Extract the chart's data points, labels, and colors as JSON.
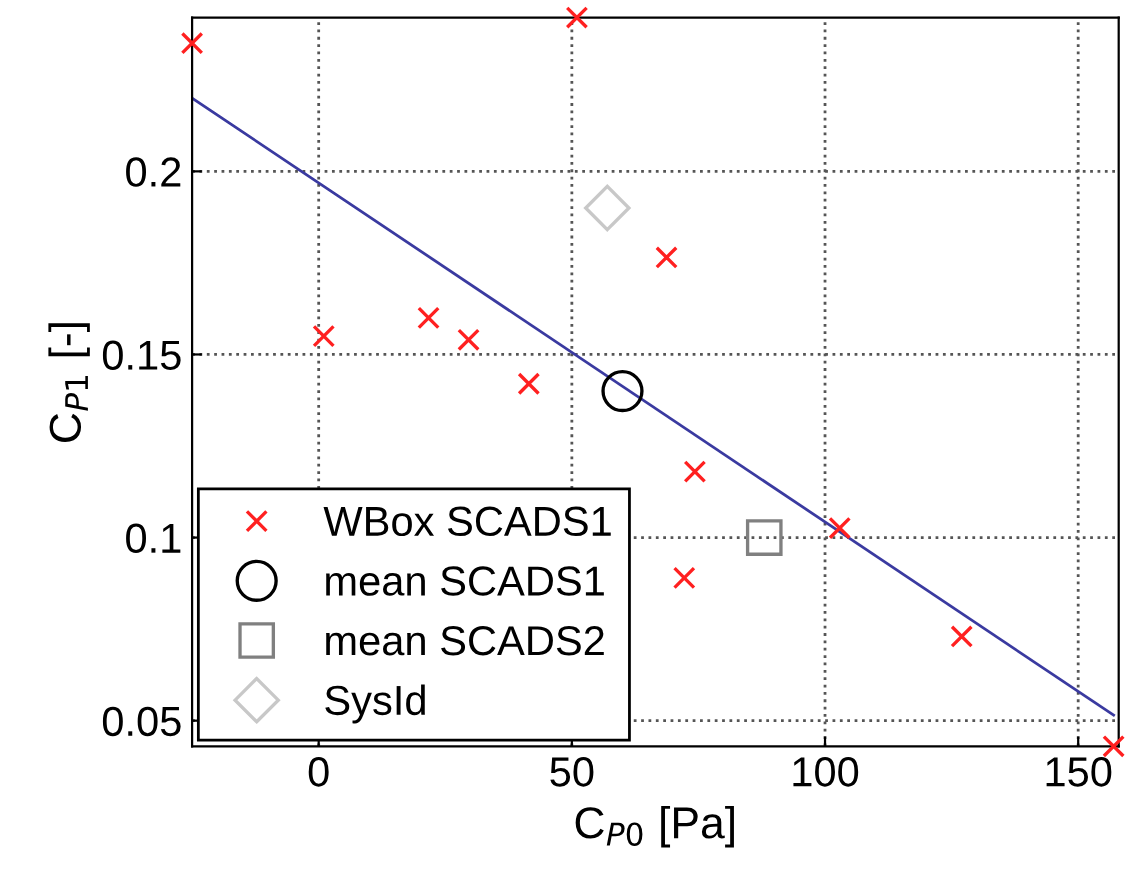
{
  "chart_data": {
    "type": "scatter",
    "xlabel": "C$_{P0}$ [Pa]",
    "ylabel": "C$_{P1}$ [-]",
    "xlim": [
      -25,
      158
    ],
    "ylim": [
      0.043,
      0.242
    ],
    "xticks": [
      0,
      50,
      100,
      150
    ],
    "yticks": [
      0.05,
      0.1,
      0.15,
      0.2
    ],
    "grid": true,
    "legend": "bottom left",
    "series": [
      {
        "name": "WBox SCADS1",
        "color": "#ff2020",
        "marker": "cross",
        "x": [
          -25,
          51,
          1,
          21.7,
          29.6,
          41.5,
          68.7,
          74.3,
          72.2,
          102.9,
          127,
          157
        ],
        "values": [
          0.235,
          0.242,
          0.155,
          0.16,
          0.154,
          0.142,
          0.1765,
          0.118,
          0.089,
          0.1026,
          0.073,
          0.043
        ]
      },
      {
        "name": "mean SCADS1",
        "color": "#000000",
        "marker": "circle",
        "x": [
          60
        ],
        "values": [
          0.14
        ]
      },
      {
        "name": "mean SCADS2",
        "color": "#808080",
        "marker": "square",
        "x": [
          88
        ],
        "values": [
          0.1
        ]
      },
      {
        "name": "SysId",
        "color": "#c8c8c8",
        "marker": "diamond",
        "x": [
          57
        ],
        "values": [
          0.19
        ]
      },
      {
        "type": "line",
        "color": "#3a3aa0",
        "line_style": "solid",
        "x": [
          -25,
          157
        ],
        "values": [
          0.22,
          0.0515
        ]
      }
    ]
  }
}
